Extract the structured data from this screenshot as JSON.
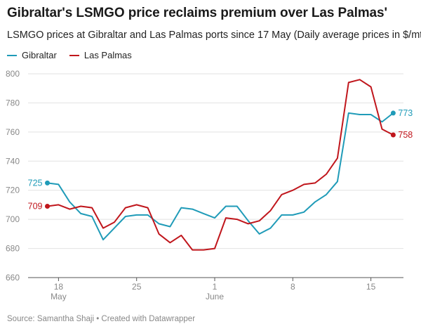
{
  "title": "Gibraltar's LSMGO price reclaims premium over Las Palmas'",
  "subtitle": "LSMGO prices at Gibraltar and Las Palmas ports since 17 May (Daily average prices in $/mt)",
  "source": "Source: Samantha Shaji • Created with Datawrapper",
  "chart_data": {
    "type": "line",
    "title": "Gibraltar's LSMGO price reclaims premium over Las Palmas'",
    "subtitle": "LSMGO prices at Gibraltar and Las Palmas ports since 17 May (Daily average prices in $/mt)",
    "xlabel": "",
    "ylabel": "",
    "ylim": [
      660,
      800
    ],
    "yticks": [
      660,
      680,
      700,
      720,
      740,
      760,
      780,
      800
    ],
    "grid": "horizontal",
    "legend": "top-left",
    "x": [
      "May 17",
      "May 18",
      "May 19",
      "May 20",
      "May 21",
      "May 22",
      "May 23",
      "May 24",
      "May 25",
      "May 26",
      "May 27",
      "May 28",
      "May 29",
      "May 30",
      "May 31",
      "Jun 1",
      "Jun 2",
      "Jun 3",
      "Jun 4",
      "Jun 5",
      "Jun 6",
      "Jun 7",
      "Jun 8",
      "Jun 9",
      "Jun 10",
      "Jun 11",
      "Jun 12",
      "Jun 13",
      "Jun 14",
      "Jun 15",
      "Jun 16",
      "Jun 17"
    ],
    "xticks": [
      {
        "day": "18",
        "month": "May",
        "index": 1
      },
      {
        "day": "25",
        "month": "",
        "index": 8
      },
      {
        "day": "1",
        "month": "June",
        "index": 15
      },
      {
        "day": "8",
        "month": "",
        "index": 22
      },
      {
        "day": "15",
        "month": "",
        "index": 29
      }
    ],
    "series": [
      {
        "name": "Gibraltar",
        "color": "#1f9bb8",
        "start_label": "725",
        "end_label": "773",
        "values": [
          725,
          724,
          712,
          704,
          702,
          686,
          694,
          702,
          703,
          703,
          697,
          695,
          708,
          707,
          704,
          701,
          709,
          709,
          699,
          690,
          694,
          703,
          703,
          705,
          712,
          717,
          726,
          773,
          772,
          772,
          767,
          773
        ]
      },
      {
        "name": "Las Palmas",
        "color": "#c0161c",
        "start_label": "709",
        "end_label": "758",
        "values": [
          709,
          710,
          707,
          709,
          708,
          694,
          698,
          708,
          710,
          708,
          690,
          684,
          689,
          679,
          679,
          680,
          701,
          700,
          697,
          699,
          706,
          717,
          720,
          724,
          725,
          731,
          742,
          794,
          796,
          791,
          762,
          758
        ]
      }
    ]
  }
}
